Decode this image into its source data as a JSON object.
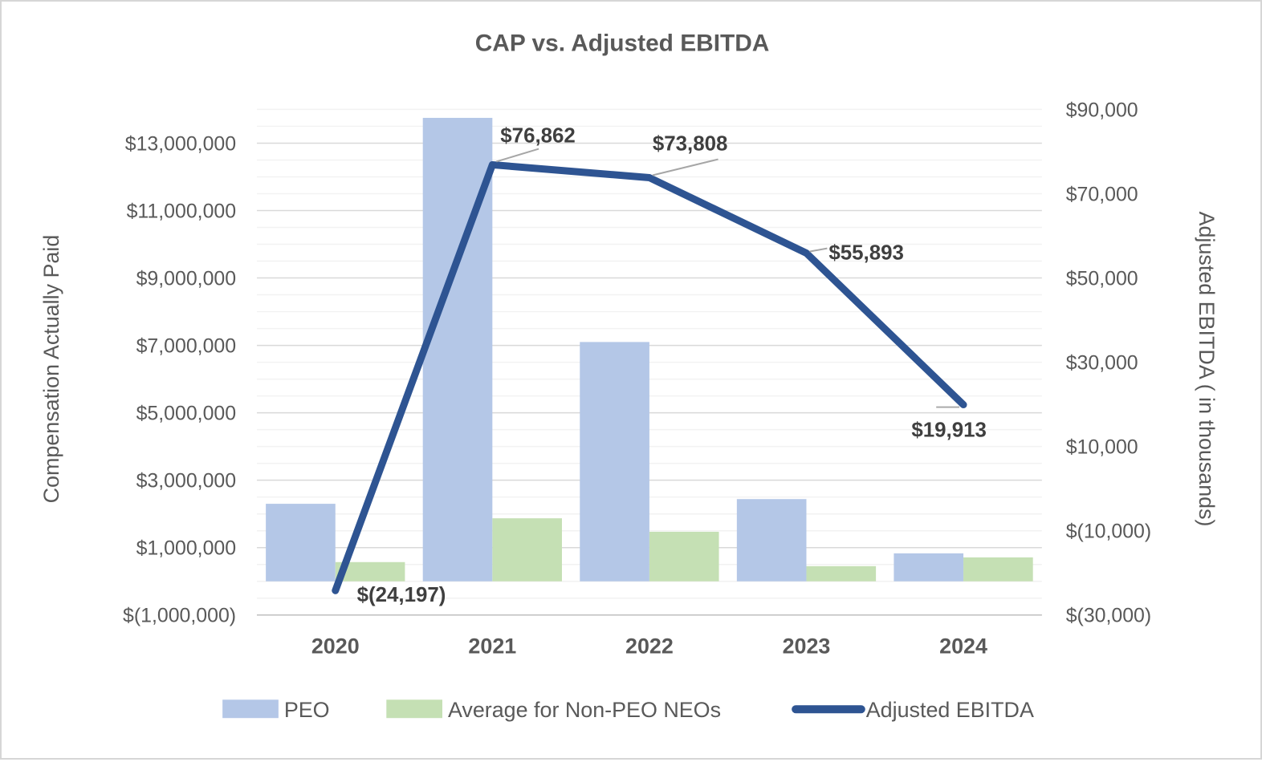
{
  "title": "CAP vs. Adjusted EBITDA",
  "chart_data": {
    "type": "combo-bar-line",
    "categories": [
      "2020",
      "2021",
      "2022",
      "2023",
      "2024"
    ],
    "series": [
      {
        "name": "PEO",
        "type": "bar",
        "axis": "left",
        "color": "#b4c7e7",
        "values": [
          2300000,
          13750000,
          7100000,
          2440000,
          830000
        ]
      },
      {
        "name": "Average for Non-PEO NEOs",
        "type": "bar",
        "axis": "left",
        "color": "#c5e0b4",
        "values": [
          570000,
          1870000,
          1470000,
          450000,
          710000
        ]
      },
      {
        "name": "Adjusted EBITDA",
        "type": "line",
        "axis": "right",
        "color": "#2e5492",
        "values": [
          -24197,
          76862,
          73808,
          55893,
          19913
        ],
        "point_labels": [
          "$(24,197)",
          "$76,862",
          "$73,808",
          "$55,893",
          "$19,913"
        ]
      }
    ],
    "left_axis": {
      "title": "Compensation Actually Paid",
      "min": -1000000,
      "max": 14000000,
      "major_unit": 2000000,
      "minor_unit": 500000,
      "tick_values": [
        13000000,
        11000000,
        9000000,
        7000000,
        5000000,
        3000000,
        1000000,
        -1000000
      ],
      "tick_labels": [
        "$13,000,000",
        "$11,000,000",
        "$9,000,000",
        "$7,000,000",
        "$5,000,000",
        "$3,000,000",
        "$1,000,000",
        "$(1,000,000)"
      ]
    },
    "right_axis": {
      "title": "Adjusted EBITDA ( in thousands)",
      "min": -30000,
      "max": 90000,
      "major_unit": 20000,
      "tick_values": [
        90000,
        70000,
        50000,
        30000,
        10000,
        -10000,
        -30000
      ],
      "tick_labels": [
        "$90,000",
        "$70,000",
        "$50,000",
        "$30,000",
        "$10,000",
        "$(10,000)",
        "$(30,000)"
      ]
    },
    "grid": true,
    "legend_position": "bottom"
  }
}
